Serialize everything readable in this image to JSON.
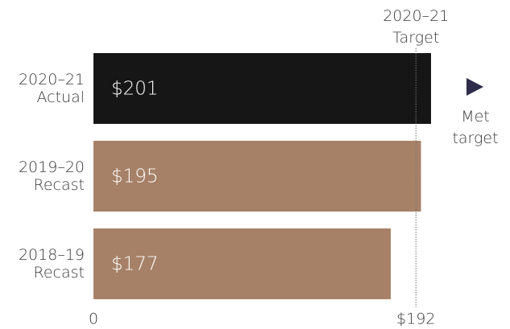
{
  "chart_data": {
    "type": "bar",
    "orientation": "horizontal",
    "categories": [
      "2020–21\nActual",
      "2019–20\nRecast",
      "2018–19\nRecast"
    ],
    "values": [
      201,
      195,
      177
    ],
    "value_labels": [
      "$201",
      "$195",
      "$177"
    ],
    "colors": [
      "#161616",
      "#a68167",
      "#a68167"
    ],
    "xlim": [
      0,
      201
    ],
    "xticks": [
      0,
      {
        "value": 192,
        "label": "$192"
      }
    ],
    "target": {
      "value": 192,
      "label": "2020–21\nTarget"
    },
    "annotation": "Met\ntarget"
  }
}
